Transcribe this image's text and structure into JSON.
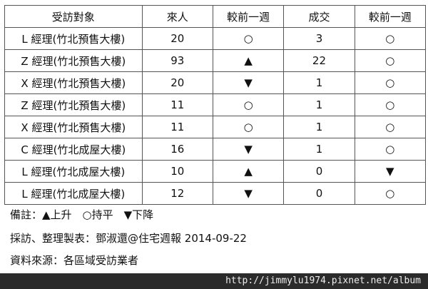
{
  "headers": [
    "受訪對象",
    "來人",
    "較前一週",
    "成交",
    "較前一週"
  ],
  "rows": [
    [
      "L 經理(竹北預售大樓)",
      "20",
      "○",
      "3",
      "○"
    ],
    [
      "Z 經理(竹北預售大樓)",
      "93",
      "▲",
      "22",
      "○"
    ],
    [
      "X 經理(竹北預售大樓)",
      "20",
      "▼",
      "1",
      "○"
    ],
    [
      "Z 經理(竹北預售大樓)",
      "11",
      "○",
      "1",
      "○"
    ],
    [
      "X 經理(竹北預售大樓)",
      "11",
      "○",
      "1",
      "○"
    ],
    [
      "C 經理(竹北成屋大樓)",
      "16",
      "▼",
      "1",
      "○"
    ],
    [
      "L 經理(竹北成屋大樓)",
      "10",
      "▲",
      "0",
      "▼"
    ],
    [
      "L 經理(竹北成屋大樓)",
      "12",
      "▼",
      "0",
      "○"
    ]
  ],
  "notes": {
    "legend": "備註：▲上升　○持平　▼下降",
    "author": "採訪、整理製表：鄧淑還@住宅週報 2014-09-22",
    "source": "資料來源：各區域受訪業者"
  },
  "watermark": "http://jimmylu1974.pixnet.net/album"
}
